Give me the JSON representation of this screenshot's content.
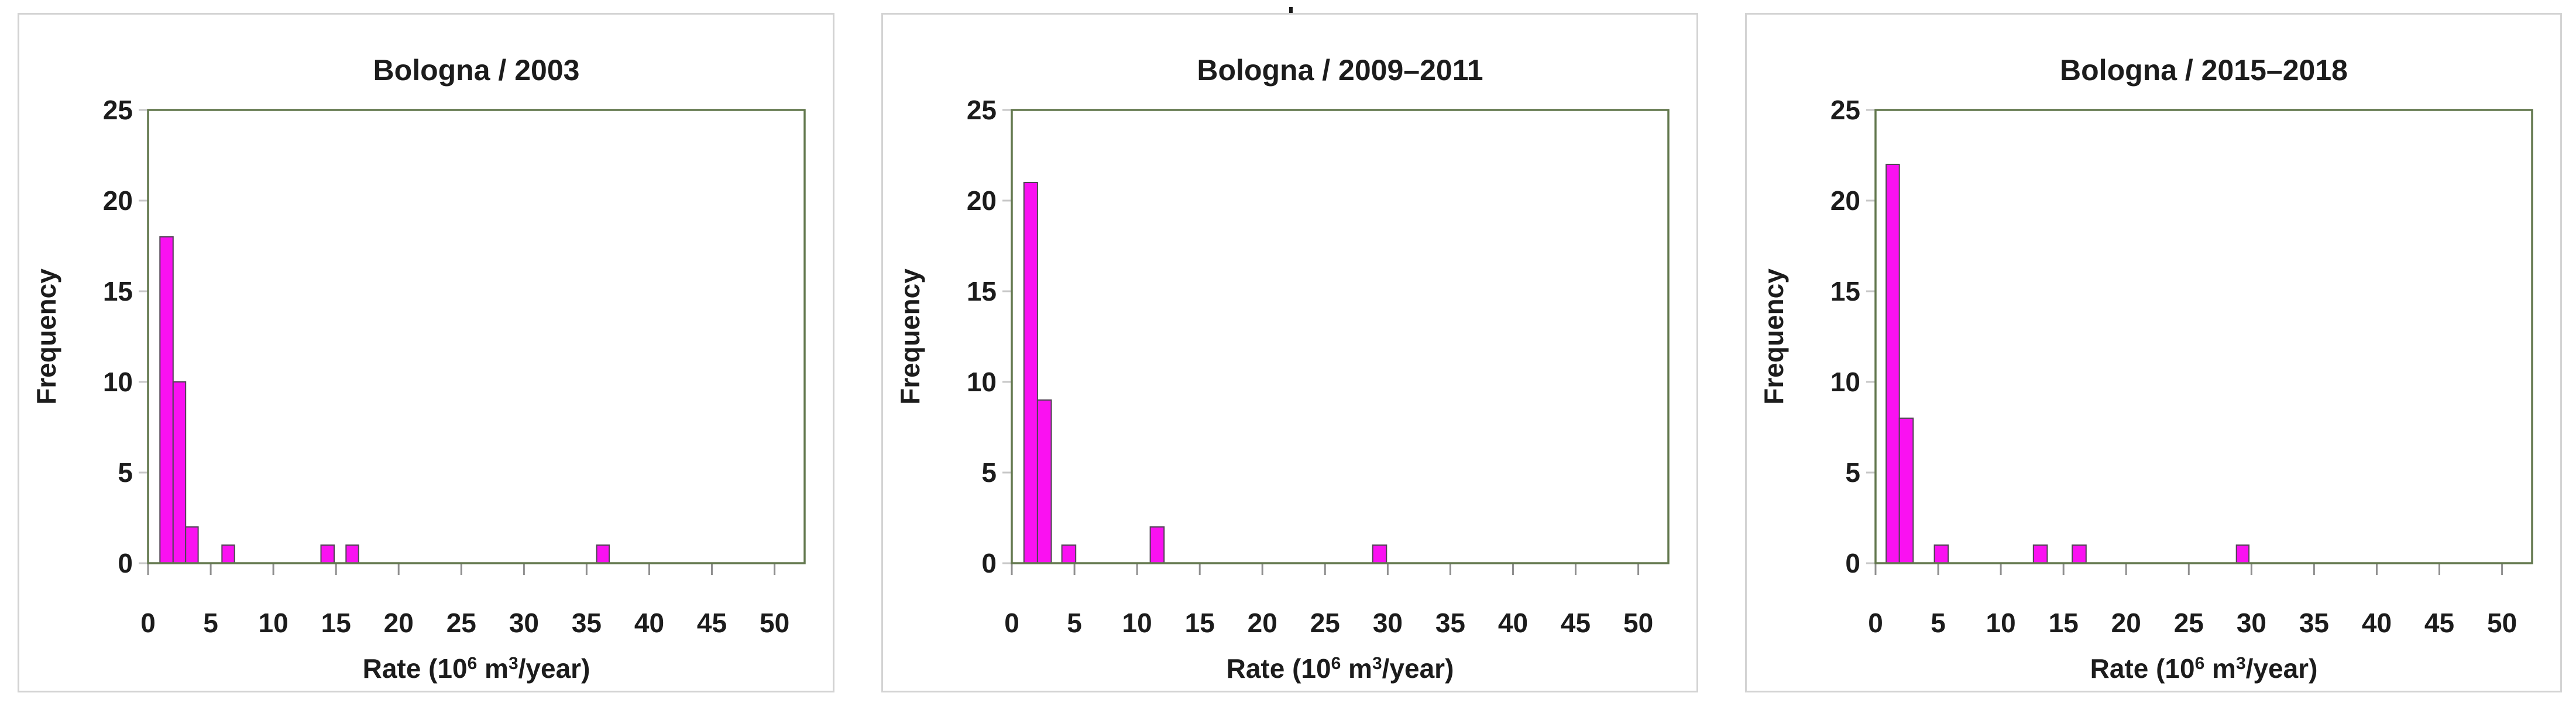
{
  "colors": {
    "bar_fill": "#FA11F1",
    "bar_stroke": "#4F4453",
    "plot_frame": "#63784E",
    "x_tick": "#8F8F8F",
    "y_tick": "#C7C7C7",
    "text": "#1C1C1C",
    "card_border": "#D3D3D3",
    "background": "#FFFFFF"
  },
  "axis": {
    "y_label": "Frequency",
    "x_label_parts": {
      "prefix": "Rate (10",
      "sup1": "6",
      "mid": " m",
      "sup2": "3",
      "suffix": "/year)"
    },
    "x_ticks": [
      0,
      5,
      10,
      15,
      20,
      25,
      30,
      35,
      40,
      45,
      50
    ],
    "y_ticks": [
      0,
      5,
      10,
      15,
      20,
      25
    ],
    "xlim": [
      0,
      52.4
    ],
    "ylim": [
      0,
      25
    ],
    "grid": false,
    "legend": false
  },
  "chart_data": [
    {
      "type": "bar",
      "subtype": "histogram",
      "title": "Bologna / 2003",
      "xlabel": "Rate (10^6 m^3/year)",
      "ylabel": "Frequency",
      "xlim": [
        0,
        52.4
      ],
      "ylim": [
        0,
        25
      ],
      "bars": [
        {
          "x0": 0.95,
          "x1": 2.0,
          "frequency": 18
        },
        {
          "x0": 2.0,
          "x1": 3.0,
          "frequency": 10
        },
        {
          "x0": 3.0,
          "x1": 4.0,
          "frequency": 2
        },
        {
          "x0": 5.9,
          "x1": 6.9,
          "frequency": 1
        },
        {
          "x0": 13.8,
          "x1": 14.85,
          "frequency": 1
        },
        {
          "x0": 15.8,
          "x1": 16.8,
          "frequency": 1
        },
        {
          "x0": 35.8,
          "x1": 36.8,
          "frequency": 1
        }
      ]
    },
    {
      "type": "bar",
      "subtype": "histogram",
      "title": "Bologna / 2009–2011",
      "xlabel": "Rate (10^6 m^3/year)",
      "ylabel": "Frequency",
      "xlim": [
        0,
        52.4
      ],
      "ylim": [
        0,
        25
      ],
      "bars": [
        {
          "x0": 0.97,
          "x1": 2.05,
          "frequency": 21
        },
        {
          "x0": 2.05,
          "x1": 3.15,
          "frequency": 9
        },
        {
          "x0": 4.0,
          "x1": 5.1,
          "frequency": 1
        },
        {
          "x0": 11.05,
          "x1": 12.15,
          "frequency": 2
        },
        {
          "x0": 28.8,
          "x1": 29.9,
          "frequency": 1
        }
      ]
    },
    {
      "type": "bar",
      "subtype": "histogram",
      "title": "Bologna / 2015–2018",
      "xlabel": "Rate (10^6 m^3/year)",
      "ylabel": "Frequency",
      "xlim": [
        0,
        52.4
      ],
      "ylim": [
        0,
        25
      ],
      "bars": [
        {
          "x0": 0.85,
          "x1": 1.9,
          "frequency": 22
        },
        {
          "x0": 1.9,
          "x1": 3.0,
          "frequency": 8
        },
        {
          "x0": 4.7,
          "x1": 5.8,
          "frequency": 1
        },
        {
          "x0": 12.6,
          "x1": 13.7,
          "frequency": 1
        },
        {
          "x0": 15.7,
          "x1": 16.8,
          "frequency": 1
        },
        {
          "x0": 28.8,
          "x1": 29.8,
          "frequency": 1
        }
      ]
    }
  ]
}
